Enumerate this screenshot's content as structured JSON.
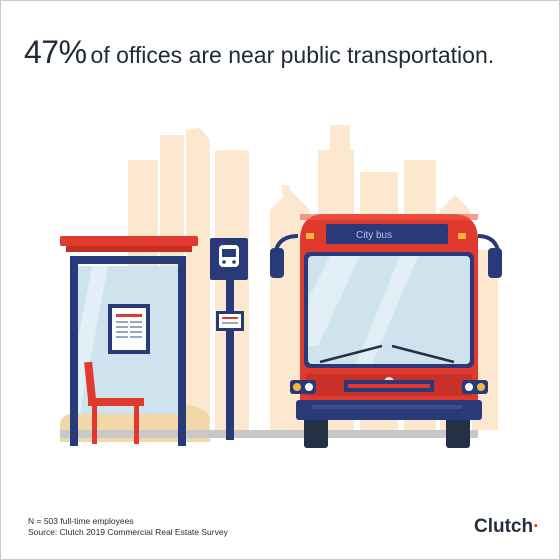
{
  "headline": {
    "stat": "47%",
    "text": "of offices are near public transportation."
  },
  "bus": {
    "destination": "City bus"
  },
  "footnotes": {
    "sample": "N = 503 full-time employees",
    "source": "Source: Clutch 2019 Commercial Real Estate Survey"
  },
  "logo": {
    "text": "Clutch",
    "dot_text": "·"
  },
  "colors": {
    "bus_red": "#e03a2e",
    "navy": "#283a7a",
    "skyline": "#fbe8cf",
    "glass": "#cfe3ef",
    "logo_dot": "#e1452b"
  }
}
